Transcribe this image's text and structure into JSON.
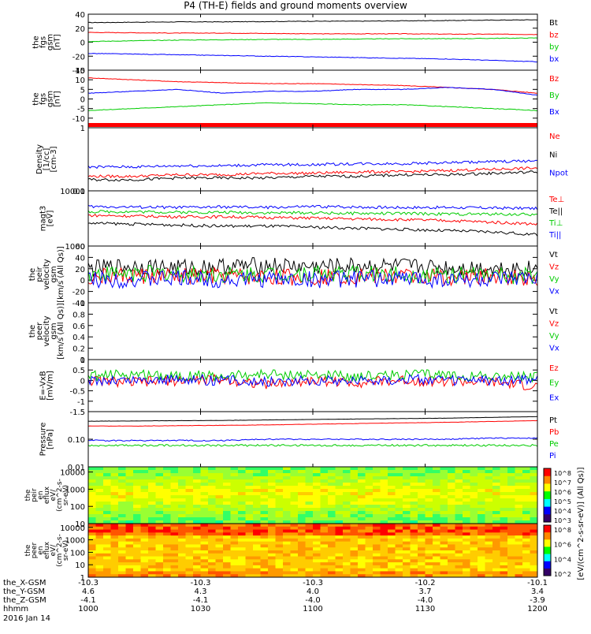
{
  "title": "P4 (TH-E) fields and ground moments overview",
  "chart_data": {
    "type": "line",
    "x_ticks": [
      "10:00",
      "10:30",
      "11:00",
      "11:30",
      "12:00"
    ],
    "panels": [
      {
        "id": "fgs",
        "ylabel": [
          "the",
          "fgs",
          "gsm",
          "[nT]"
        ],
        "ylim": [
          -40,
          40
        ],
        "yticks": [
          40,
          20,
          0,
          -20,
          -40
        ],
        "series": [
          {
            "name": "Bt",
            "color": "#000000",
            "values": [
              28,
              28.5,
              29,
              29,
              29.5,
              30,
              30,
              30.5,
              31,
              31.5,
              32
            ]
          },
          {
            "name": "bz",
            "color": "#ff0000",
            "values": [
              14,
              13.5,
              13,
              13,
              12.5,
              12,
              12,
              12,
              11.5,
              11.5,
              11
            ]
          },
          {
            "name": "by",
            "color": "#00cc00",
            "values": [
              1,
              2,
              3,
              3.5,
              4,
              4,
              4.5,
              5,
              5,
              5.5,
              6
            ]
          },
          {
            "name": "bx",
            "color": "#0000ff",
            "values": [
              -16,
              -17,
              -18,
              -19,
              -20,
              -21,
              -22,
              -23,
              -24,
              -26,
              -28
            ]
          }
        ]
      },
      {
        "id": "fgs-dsl",
        "ylabel": [
          "the",
          "fgs",
          "gsm",
          "[nT]"
        ],
        "ylim": [
          -15,
          15
        ],
        "yticks": [
          15,
          10,
          5,
          0,
          -5,
          -10
        ],
        "series": [
          {
            "name": "Bz",
            "color": "#ff0000",
            "values": [
              11,
              10,
              9,
              8.5,
              8,
              8,
              7.5,
              7,
              6,
              5,
              3
            ]
          },
          {
            "name": "By",
            "color": "#00cc00",
            "values": [
              -6,
              -5,
              -4,
              -3,
              -2,
              -2.5,
              -3,
              -3,
              -4,
              -5,
              -6
            ]
          },
          {
            "name": "Bx",
            "color": "#0000ff",
            "values": [
              3,
              4,
              5,
              3,
              4,
              4,
              5,
              5,
              6,
              5,
              2
            ]
          }
        ]
      },
      {
        "id": "density",
        "ylabel": [
          "Density",
          "[1/cc]",
          "[cm-3]"
        ],
        "log": true,
        "ylim": [
          0.1,
          1.0
        ],
        "yticks": [
          1.0,
          0.1
        ],
        "series": [
          {
            "name": "Ne",
            "color": "#ff0000",
            "values": [
              0.17,
              0.17,
              0.18,
              0.18,
              0.19,
              0.19,
              0.2,
              0.2,
              0.21,
              0.22,
              0.23
            ]
          },
          {
            "name": "Ni",
            "color": "#000000",
            "values": [
              0.15,
              0.15,
              0.16,
              0.16,
              0.16,
              0.17,
              0.17,
              0.18,
              0.18,
              0.19,
              0.2
            ]
          },
          {
            "name": "Npot",
            "color": "#0000ff",
            "values": [
              0.24,
              0.24,
              0.25,
              0.25,
              0.26,
              0.26,
              0.27,
              0.27,
              0.28,
              0.29,
              0.3
            ]
          }
        ]
      },
      {
        "id": "temperature",
        "ylabel": [
          "magt3",
          "[eV]"
        ],
        "log": true,
        "ylim": [
          1000,
          10000
        ],
        "yticks": [
          10000,
          1000
        ],
        "series": [
          {
            "name": "Te⊥",
            "color": "#ff0000",
            "values": [
              3600,
              3500,
              3400,
              3400,
              3300,
              3200,
              3100,
              3000,
              2900,
              2700,
              2500
            ]
          },
          {
            "name": "Te||",
            "color": "#000000",
            "values": [
              2600,
              2500,
              2400,
              2300,
              2300,
              2200,
              2100,
              2000,
              1900,
              1800,
              1600
            ]
          },
          {
            "name": "Ti⊥",
            "color": "#00cc00",
            "values": [
              4200,
              4200,
              4100,
              4100,
              4000,
              4000,
              3900,
              3900,
              3800,
              3800,
              3700
            ]
          },
          {
            "name": "Ti||",
            "color": "#0000ff",
            "values": [
              5200,
              5100,
              5000,
              5100,
              5000,
              5200,
              5100,
              5000,
              5000,
              4900,
              4800
            ]
          }
        ]
      },
      {
        "id": "peir-velocity",
        "ylabel": [
          "the",
          "peir",
          "velocity",
          "gsm",
          "[km/s (All Qs)]"
        ],
        "ylim": [
          -40,
          60
        ],
        "yticks": [
          60,
          40,
          20,
          0,
          -20,
          -40
        ],
        "series": [
          {
            "name": "Vt",
            "color": "#000000",
            "values": [
              20,
              25,
              22,
              24,
              26,
              23,
              25,
              24,
              22,
              21,
              20
            ]
          },
          {
            "name": "Vz",
            "color": "#ff0000",
            "values": [
              5,
              8,
              6,
              7,
              5,
              6,
              8,
              7,
              5,
              6,
              4
            ]
          },
          {
            "name": "Vy",
            "color": "#00cc00",
            "values": [
              10,
              12,
              11,
              9,
              10,
              12,
              11,
              10,
              9,
              8,
              7
            ]
          },
          {
            "name": "Vx",
            "color": "#0000ff",
            "values": [
              2,
              1,
              3,
              0,
              2,
              1,
              2,
              3,
              1,
              0,
              1
            ]
          }
        ]
      },
      {
        "id": "peer-velocity",
        "ylabel": [
          "the",
          "peer",
          "velocity",
          "gsm",
          "[km/s (All Qs)]"
        ],
        "ylim": [
          0,
          1
        ],
        "yticks": [
          1.0,
          0.8,
          0.6,
          0.4,
          0.2,
          0.0
        ],
        "series": [
          {
            "name": "Vt",
            "color": "#000000",
            "values": []
          },
          {
            "name": "Vz",
            "color": "#ff0000",
            "values": []
          },
          {
            "name": "Vy",
            "color": "#00cc00",
            "values": []
          },
          {
            "name": "Vx",
            "color": "#0000ff",
            "values": []
          }
        ]
      },
      {
        "id": "efield",
        "ylabel": [
          "E=-VxB",
          "[mV/m]"
        ],
        "ylim": [
          -1.5,
          1.0
        ],
        "yticks": [
          1.0,
          0.5,
          0.0,
          -0.5,
          -1.0,
          -1.5
        ],
        "series": [
          {
            "name": "Ez",
            "color": "#ff0000",
            "values": [
              0.0,
              -0.1,
              0.0,
              0.05,
              -0.2,
              0.0,
              -0.1,
              0.0,
              -0.05,
              -0.1,
              -0.3
            ]
          },
          {
            "name": "Ey",
            "color": "#00cc00",
            "values": [
              0.2,
              0.3,
              0.25,
              0.2,
              0.3,
              0.25,
              0.2,
              0.3,
              0.25,
              0.2,
              0.15
            ]
          },
          {
            "name": "Ex",
            "color": "#0000ff",
            "values": [
              0.0,
              0.0,
              0.05,
              0.0,
              -0.05,
              0.0,
              0.0,
              0.05,
              0.0,
              0.0,
              0.0
            ]
          }
        ]
      },
      {
        "id": "pressure",
        "ylabel": [
          "Pressure",
          "[nPa]"
        ],
        "log": true,
        "ylim": [
          0.01,
          1.0
        ],
        "yticks": [
          0.1,
          0.01
        ],
        "ytick_labels": [
          "0.10",
          "0.01"
        ],
        "series": [
          {
            "name": "Pt",
            "color": "#000000",
            "values": [
              0.45,
              0.46,
              0.47,
              0.48,
              0.5,
              0.52,
              0.54,
              0.56,
              0.58,
              0.62,
              0.66
            ]
          },
          {
            "name": "Pb",
            "color": "#ff0000",
            "values": [
              0.3,
              0.3,
              0.31,
              0.32,
              0.33,
              0.35,
              0.37,
              0.39,
              0.41,
              0.44,
              0.47
            ]
          },
          {
            "name": "Pe",
            "color": "#00cc00",
            "values": [
              0.06,
              0.06,
              0.06,
              0.06,
              0.06,
              0.06,
              0.06,
              0.06,
              0.06,
              0.06,
              0.06
            ]
          },
          {
            "name": "Pi",
            "color": "#0000ff",
            "values": [
              0.09,
              0.09,
              0.09,
              0.09,
              0.1,
              0.1,
              0.1,
              0.1,
              0.1,
              0.11,
              0.11
            ]
          }
        ]
      }
    ],
    "spectrograms": [
      {
        "id": "peir-en",
        "ylabel": [
          "the",
          "peir",
          "en",
          "eflux",
          "eV/",
          "(cm^2-s-",
          "sr-eV)"
        ],
        "ylim": [
          10,
          20000
        ],
        "yticks": [
          10000,
          1000,
          100,
          10
        ],
        "colorbar_ticks": [
          "10^8",
          "10^7",
          "10^6",
          "10^5",
          "10^4",
          "10^3"
        ]
      },
      {
        "id": "peer-en",
        "ylabel": [
          "the",
          "peer",
          "en",
          "eflux",
          "eV/",
          "(cm^2-s-",
          "sr-eV)"
        ],
        "ylim": [
          1,
          20000
        ],
        "yticks": [
          10000,
          1000,
          100,
          10,
          1
        ],
        "colorbar_ticks": [
          "10^8",
          "10^6",
          "10^4",
          "10^2"
        ]
      }
    ],
    "colorbar_label": "[eV/(cm^2-s-sr-eV)] (All Qs)]",
    "ephemeris": {
      "rows": [
        {
          "label": "the_X-GSM",
          "values": [
            "-10.3",
            "-10.3",
            "-10.3",
            "-10.2",
            "-10.1"
          ]
        },
        {
          "label": "the_Y-GSM",
          "values": [
            "4.6",
            "4.3",
            "4.0",
            "3.7",
            "3.4"
          ]
        },
        {
          "label": "the_Z-GSM",
          "values": [
            "-4.1",
            "-4.1",
            "-4.0",
            "-4.0",
            "-3.9"
          ]
        },
        {
          "label": "hhmm",
          "values": [
            "1000",
            "1030",
            "1100",
            "1130",
            "1200"
          ]
        }
      ],
      "date": "2016 Jan 14"
    }
  }
}
